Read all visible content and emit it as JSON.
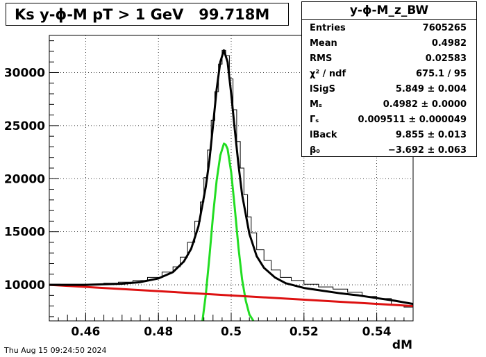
{
  "title": "Ks y-ϕ-M pT > 1 GeV   99.718M",
  "date": "Thu Aug 15 09:24:50 2024",
  "stats": {
    "name": "y-ϕ-M_z_BW",
    "rows": [
      {
        "label": "Entries",
        "value": "7605265"
      },
      {
        "label": "Mean",
        "value": "0.4982"
      },
      {
        "label": "RMS",
        "value": "0.02583"
      },
      {
        "label": "χ² / ndf",
        "value": "675.1 / 95"
      },
      {
        "label": "lSigS",
        "value": "5.849 ± 0.004"
      },
      {
        "label": "Mₛ",
        "value": "0.4982 ± 0.0000"
      },
      {
        "label": "Γₛ",
        "value": "0.009511 ± 0.000049"
      },
      {
        "label": "lBack",
        "value": "9.855 ± 0.013"
      },
      {
        "label": "β₀",
        "value": "−3.692 ± 0.063"
      }
    ]
  },
  "chart_data": {
    "type": "line",
    "xlabel": "dM",
    "ylabel": "",
    "xlim": [
      0.45,
      0.55
    ],
    "ylim": [
      6600,
      33500
    ],
    "xticks": [
      0.46,
      0.48,
      0.5,
      0.52,
      0.54
    ],
    "xtick_labels": [
      "0.46",
      "0.48",
      "0.5",
      "0.52",
      "0.54"
    ],
    "yticks": [
      10000,
      15000,
      20000,
      25000,
      30000
    ],
    "ytick_labels": [
      "10000",
      "15000",
      "20000",
      "25000",
      "30000"
    ],
    "grid": true,
    "series": [
      {
        "kind": "histogram",
        "color": "#000000",
        "x": [
          0.451,
          0.455,
          0.459,
          0.463,
          0.467,
          0.471,
          0.475,
          0.479,
          0.483,
          0.485,
          0.487,
          0.489,
          0.491,
          0.492,
          0.493,
          0.494,
          0.495,
          0.496,
          0.497,
          0.498,
          0.499,
          0.5,
          0.501,
          0.502,
          0.503,
          0.504,
          0.505,
          0.506,
          0.508,
          0.51,
          0.512,
          0.515,
          0.518,
          0.522,
          0.526,
          0.53,
          0.534,
          0.538,
          0.542,
          0.546,
          0.549
        ],
        "y": [
          10050,
          10000,
          10020,
          10050,
          10150,
          10250,
          10400,
          10700,
          11200,
          11700,
          12600,
          14000,
          16000,
          17800,
          20100,
          22700,
          25500,
          28200,
          30800,
          32100,
          31600,
          29400,
          26500,
          23500,
          21000,
          18500,
          16400,
          14900,
          13300,
          12300,
          11400,
          10700,
          10400,
          10050,
          9800,
          9600,
          9300,
          8900,
          8700,
          8100,
          7900
        ]
      },
      {
        "kind": "fit-total",
        "color": "#000000",
        "x": [
          0.45,
          0.46,
          0.47,
          0.475,
          0.48,
          0.484,
          0.487,
          0.489,
          0.491,
          0.493,
          0.494,
          0.495,
          0.496,
          0.497,
          0.498,
          0.499,
          0.5,
          0.501,
          0.502,
          0.503,
          0.505,
          0.507,
          0.509,
          0.512,
          0.515,
          0.52,
          0.525,
          0.53,
          0.535,
          0.54,
          0.545,
          0.55
        ],
        "y": [
          10000,
          10000,
          10100,
          10250,
          10600,
          11200,
          12200,
          13400,
          15500,
          19200,
          21700,
          25000,
          28400,
          31000,
          32100,
          31000,
          28000,
          24600,
          21300,
          18500,
          14800,
          12700,
          11600,
          10700,
          10150,
          9700,
          9450,
          9200,
          9000,
          8750,
          8500,
          8200
        ]
      },
      {
        "kind": "fit-signal",
        "color": "#22dd22",
        "x": [
          0.4921,
          0.493,
          0.494,
          0.495,
          0.496,
          0.497,
          0.498,
          0.4985,
          0.499,
          0.5,
          0.501,
          0.502,
          0.503,
          0.504,
          0.505,
          0.5061
        ],
        "y": [
          6600,
          9000,
          12600,
          16500,
          19800,
          22200,
          23300,
          23200,
          22800,
          20600,
          17200,
          13500,
          10500,
          8500,
          7200,
          6600
        ]
      },
      {
        "kind": "fit-background",
        "color": "#dd1111",
        "x": [
          0.45,
          0.55
        ],
        "y": [
          10000,
          8000
        ]
      }
    ]
  }
}
